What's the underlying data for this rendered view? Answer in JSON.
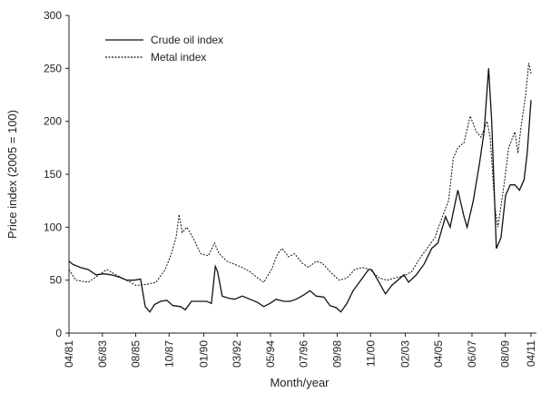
{
  "chart_data": {
    "type": "line",
    "xlabel": "Month/year",
    "ylabel": "Price index (2005 = 100)",
    "xlim": [
      1981.25,
      2011.25
    ],
    "xticks": [
      {
        "value": 1981.25,
        "label": "04/81"
      },
      {
        "value": 1983.417,
        "label": "06/83"
      },
      {
        "value": 1985.583,
        "label": "08/85"
      },
      {
        "value": 1987.75,
        "label": "10/87"
      },
      {
        "value": 1990.0,
        "label": "01/90"
      },
      {
        "value": 1992.167,
        "label": "03/92"
      },
      {
        "value": 1994.333,
        "label": "05/94"
      },
      {
        "value": 1996.5,
        "label": "07/96"
      },
      {
        "value": 1998.667,
        "label": "09/98"
      },
      {
        "value": 2000.833,
        "label": "11/00"
      },
      {
        "value": 2003.083,
        "label": "02/03"
      },
      {
        "value": 2005.25,
        "label": "04/05"
      },
      {
        "value": 2007.417,
        "label": "06/07"
      },
      {
        "value": 2009.583,
        "label": "08/09"
      },
      {
        "value": 2011.25,
        "label": "04/11"
      }
    ],
    "ylim": [
      0,
      300
    ],
    "yticks": [
      0,
      50,
      100,
      150,
      200,
      250,
      300
    ],
    "legend": "upper-left",
    "series": [
      {
        "name": "Crude oil index",
        "color": "#111111",
        "dash": "solid",
        "x": [
          1981.25,
          1981.5,
          1982,
          1982.5,
          1983,
          1983.5,
          1984,
          1984.5,
          1985,
          1985.5,
          1985.9,
          1986.2,
          1986.5,
          1986.8,
          1987.2,
          1987.6,
          1988,
          1988.5,
          1988.8,
          1989.2,
          1989.6,
          1990.2,
          1990.5,
          1990.75,
          1990.9,
          1991.2,
          1991.6,
          1992,
          1992.5,
          1993,
          1993.5,
          1993.9,
          1994.3,
          1994.7,
          1995.2,
          1995.6,
          1996,
          1996.5,
          1996.9,
          1997.3,
          1997.8,
          1998.2,
          1998.6,
          1998.9,
          1999.3,
          1999.7,
          2000.2,
          2000.7,
          2000.9,
          2001.3,
          2001.8,
          2002.2,
          2002.6,
          2003,
          2003.3,
          2003.8,
          2004.3,
          2004.8,
          2005.2,
          2005.7,
          2006,
          2006.5,
          2006.9,
          2007.1,
          2007.5,
          2007.9,
          2008.2,
          2008.5,
          2008.7,
          2008.9,
          2009,
          2009.3,
          2009.6,
          2009.9,
          2010.2,
          2010.5,
          2010.8,
          2011,
          2011.25
        ],
        "values": [
          68,
          65,
          62,
          60,
          55,
          56,
          55,
          53,
          50,
          50,
          51,
          25,
          20,
          27,
          30,
          31,
          26,
          25,
          22,
          30,
          30,
          30,
          28,
          63,
          58,
          35,
          33,
          32,
          35,
          32,
          29,
          25,
          28,
          32,
          30,
          30,
          32,
          36,
          40,
          35,
          34,
          26,
          24,
          20,
          28,
          40,
          50,
          60,
          60,
          50,
          37,
          45,
          50,
          55,
          48,
          55,
          65,
          80,
          85,
          110,
          100,
          135,
          110,
          100,
          125,
          160,
          190,
          250,
          200,
          120,
          80,
          90,
          130,
          140,
          140,
          135,
          145,
          170,
          220
        ]
      },
      {
        "name": "Metal index",
        "color": "#111111",
        "dash": "dashed",
        "x": [
          1981.25,
          1981.7,
          1982.5,
          1983.2,
          1983.7,
          1984.3,
          1985,
          1985.6,
          1986.3,
          1986.9,
          1987.5,
          1987.9,
          1988.2,
          1988.4,
          1988.6,
          1988.9,
          1989.3,
          1989.8,
          1990.3,
          1990.7,
          1991,
          1991.5,
          1992,
          1992.5,
          1993,
          1993.5,
          1993.9,
          1994.4,
          1994.8,
          1995.1,
          1995.5,
          1995.9,
          1996.4,
          1996.8,
          1997.3,
          1997.7,
          1998.2,
          1998.8,
          1999.3,
          1999.8,
          2000.3,
          2000.8,
          2001.4,
          2001.9,
          2002.4,
          2003,
          2003.5,
          2004,
          2004.5,
          2005,
          2005.5,
          2005.9,
          2006.2,
          2006.5,
          2006.9,
          2007.3,
          2007.7,
          2008,
          2008.4,
          2008.6,
          2008.9,
          2009.1,
          2009.5,
          2009.8,
          2010.2,
          2010.4,
          2010.6,
          2010.9,
          2011.1,
          2011.25
        ],
        "values": [
          60,
          50,
          48,
          55,
          60,
          55,
          50,
          45,
          46,
          48,
          60,
          75,
          90,
          112,
          95,
          100,
          90,
          75,
          73,
          85,
          75,
          68,
          65,
          62,
          58,
          52,
          48,
          60,
          75,
          80,
          72,
          75,
          66,
          62,
          68,
          66,
          58,
          50,
          52,
          60,
          62,
          60,
          52,
          50,
          52,
          54,
          58,
          70,
          80,
          90,
          110,
          125,
          165,
          175,
          180,
          205,
          190,
          185,
          200,
          185,
          120,
          100,
          140,
          175,
          190,
          170,
          195,
          225,
          255,
          245
        ]
      }
    ]
  }
}
